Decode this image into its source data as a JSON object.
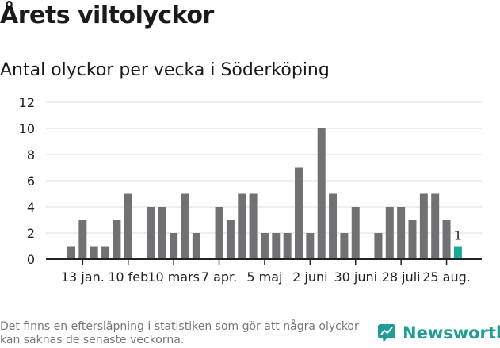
{
  "header": {
    "title": "Årets viltolyckor",
    "subtitle": "Antal olyckor per vecka i Söderköping"
  },
  "footer": {
    "note": "Det finns en eftersläpning i statistiken som gör att några olyckor kan saknas de senaste veckorna.",
    "brand": "Newsworthy"
  },
  "colors": {
    "bar": "#717073",
    "highlight": "#1aa89b",
    "grid": "#dddddd",
    "axis": "#222222",
    "brand": "#1f9e93"
  },
  "chart_data": {
    "type": "bar",
    "weeks": [
      1,
      2,
      3,
      4,
      5,
      6,
      7,
      8,
      9,
      10,
      11,
      12,
      13,
      14,
      15,
      16,
      17,
      18,
      19,
      20,
      21,
      22,
      23,
      24,
      25,
      26,
      27,
      28,
      29,
      30,
      31,
      32,
      33,
      34,
      35
    ],
    "values": [
      1,
      3,
      1,
      1,
      3,
      5,
      0,
      4,
      4,
      2,
      5,
      2,
      0,
      4,
      3,
      5,
      5,
      2,
      2,
      2,
      7,
      2,
      10,
      5,
      2,
      4,
      0,
      2,
      4,
      4,
      3,
      5,
      5,
      3,
      1
    ],
    "highlight_last": true,
    "last_label": "1",
    "ylim": [
      0,
      12
    ],
    "yticks": [
      0,
      2,
      4,
      6,
      8,
      10,
      12
    ],
    "xticks": [
      {
        "week": 2,
        "label": "13 jan."
      },
      {
        "week": 6,
        "label": "10 feb"
      },
      {
        "week": 10,
        "label": "10 mars"
      },
      {
        "week": 14,
        "label": "7 apr."
      },
      {
        "week": 18,
        "label": "5 maj"
      },
      {
        "week": 22,
        "label": "2 juni"
      },
      {
        "week": 26,
        "label": "30 juni"
      },
      {
        "week": 30,
        "label": "28 juli"
      },
      {
        "week": 34,
        "label": "25 aug."
      }
    ],
    "grid": true
  }
}
